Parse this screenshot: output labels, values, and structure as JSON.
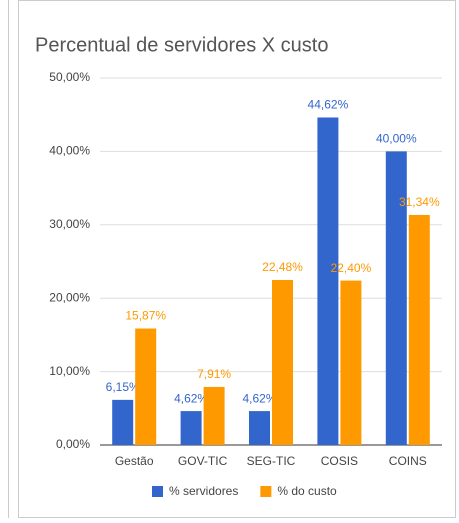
{
  "chart_data": {
    "type": "bar",
    "title": "Percentual de servidores X custo",
    "categories": [
      "Gestão",
      "GOV-TIC",
      "SEG-TIC",
      "COSIS",
      "COINS"
    ],
    "series": [
      {
        "name": "% servidores",
        "color": "#3366cc",
        "values": [
          6.15,
          4.62,
          4.62,
          44.62,
          40.0
        ],
        "value_labels": [
          "6,15%",
          "4,62%",
          "4,62%",
          "44,62%",
          "40,00%"
        ]
      },
      {
        "name": "% do custo",
        "color": "#ff9900",
        "values": [
          15.87,
          7.91,
          22.48,
          22.4,
          31.34
        ],
        "value_labels": [
          "15,87%",
          "7,91%",
          "22,48%",
          "22,40%",
          "31,34%"
        ]
      }
    ],
    "ylim": [
      0,
      50
    ],
    "yticks": [
      {
        "value": 0,
        "label": "0,00%"
      },
      {
        "value": 10,
        "label": "10,00%"
      },
      {
        "value": 20,
        "label": "20,00%"
      },
      {
        "value": 30,
        "label": "30,00%"
      },
      {
        "value": 40,
        "label": "40,00%"
      },
      {
        "value": 50,
        "label": "50,00%"
      }
    ],
    "grid": true,
    "legend": "bottom"
  }
}
